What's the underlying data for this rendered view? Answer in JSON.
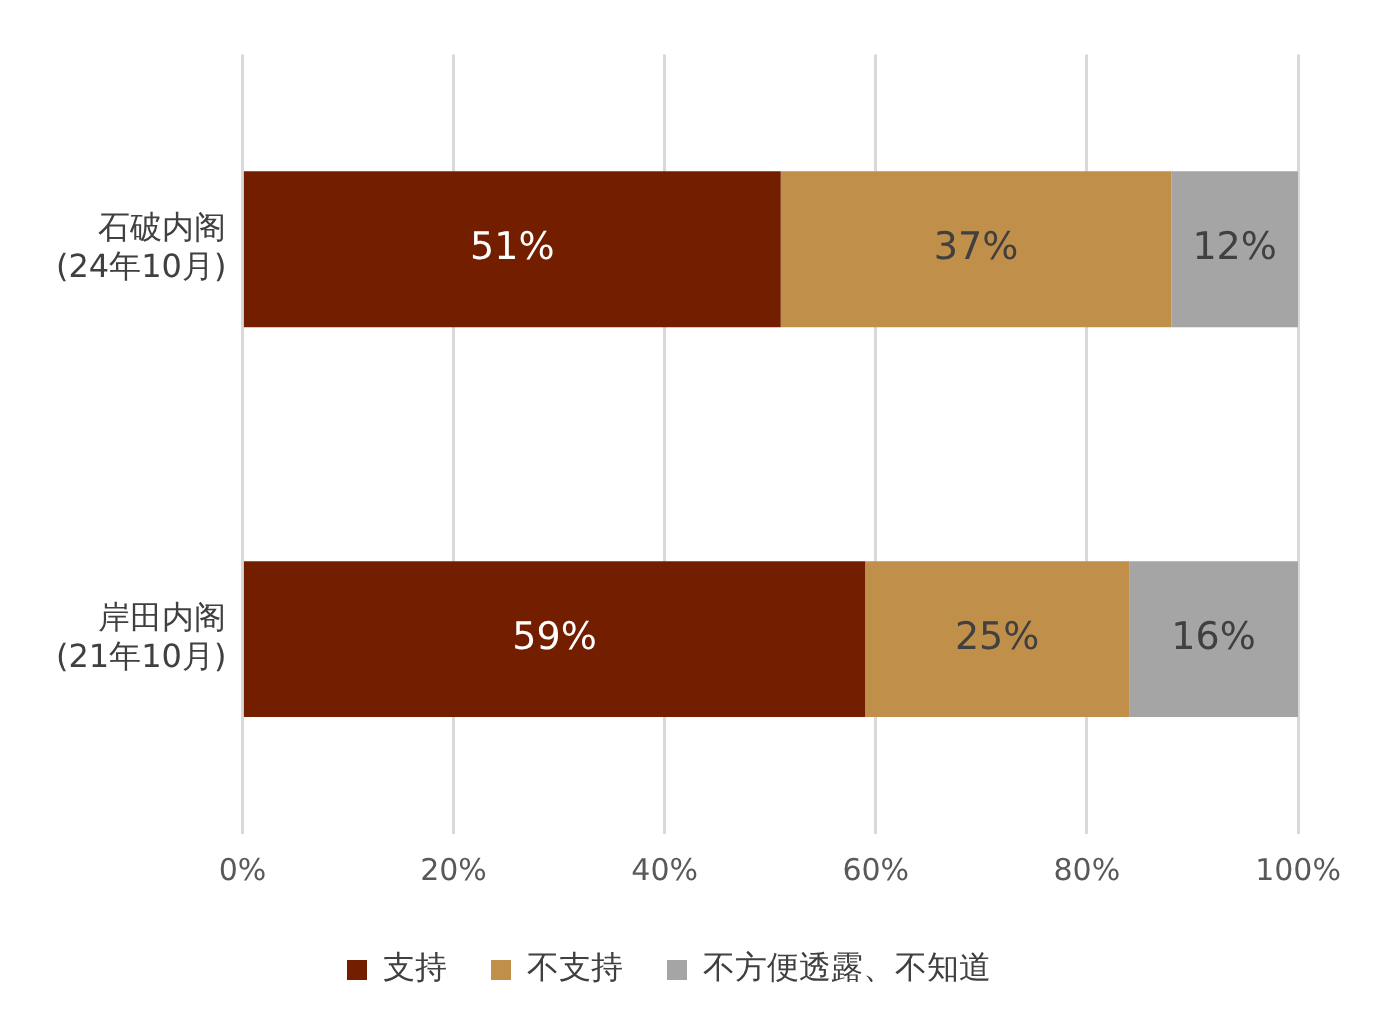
{
  "chart_data": {
    "type": "bar",
    "orientation": "horizontal",
    "stacked": true,
    "categories": [
      "石破内阁\n(24年10月)",
      "岸田内阁\n(21年10月)"
    ],
    "series": [
      {
        "name": "支持",
        "color": "#741e00",
        "values": [
          51,
          59
        ],
        "value_labels": [
          "51%",
          "59%"
        ]
      },
      {
        "name": "不支持",
        "color": "#c08f4a",
        "values": [
          37,
          25
        ],
        "value_labels": [
          "37%",
          "25%"
        ]
      },
      {
        "name": "不方便透露、不知道",
        "color": "#a5a5a5",
        "values": [
          12,
          16
        ],
        "value_labels": [
          "12%",
          "16%"
        ]
      }
    ],
    "xlim": [
      0,
      100
    ],
    "xticks": [
      {
        "value": 0,
        "label": "0%"
      },
      {
        "value": 20,
        "label": "20%"
      },
      {
        "value": 40,
        "label": "40%"
      },
      {
        "value": 60,
        "label": "60%"
      },
      {
        "value": 80,
        "label": "80%"
      },
      {
        "value": 100,
        "label": "100%"
      }
    ],
    "grid": "x",
    "legend": "bottom"
  }
}
